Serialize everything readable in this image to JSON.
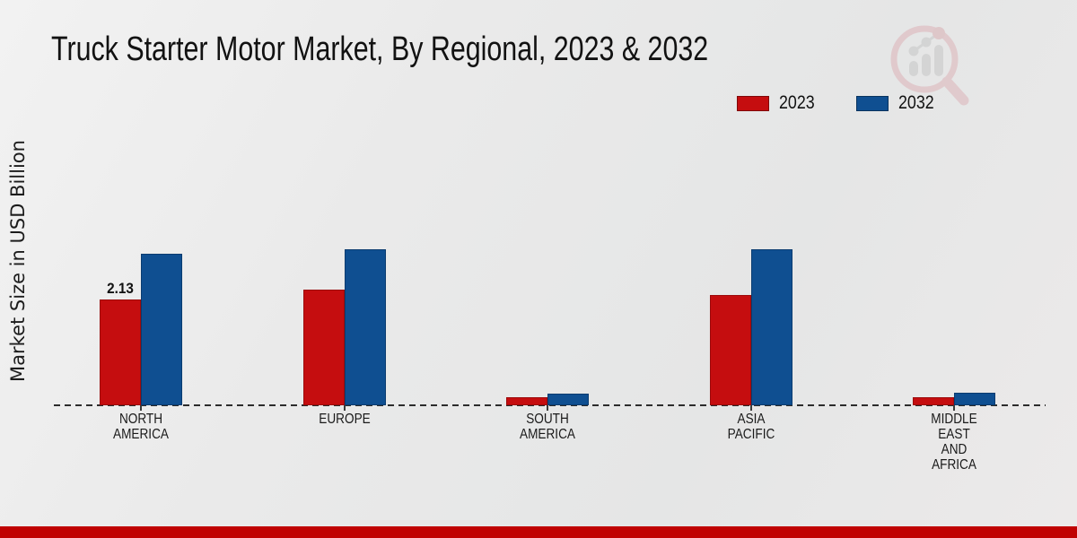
{
  "title": "Truck Starter Motor Market, By Regional, 2023 & 2032",
  "ylabel": "Market Size in USD Billion",
  "colors": {
    "series_2023": "#c50d0f",
    "series_2032": "#0f4f91",
    "footer_strip": "#c00202",
    "background": "#e9eaea",
    "baseline": "#2c2c2c",
    "watermark_pink": "#dcb3b8",
    "watermark_gray": "#c6c6c6"
  },
  "legend": {
    "position": "top-right",
    "items": [
      {
        "label": "2023",
        "color": "#c50d0f"
      },
      {
        "label": "2032",
        "color": "#0f4f91"
      }
    ]
  },
  "chart_data": {
    "type": "bar",
    "title": "Truck Starter Motor Market, By Regional, 2023 & 2032",
    "ylabel": "Market Size in USD Billion",
    "xlabel": "",
    "categories": [
      "NORTH AMERICA",
      "EUROPE",
      "SOUTH AMERICA",
      "ASIA PACIFIC",
      "MIDDLE EAST AND AFRICA"
    ],
    "category_lines": [
      [
        "NORTH",
        "AMERICA"
      ],
      [
        "EUROPE"
      ],
      [
        "SOUTH",
        "AMERICA"
      ],
      [
        "ASIA",
        "PACIFIC"
      ],
      [
        "MIDDLE",
        "EAST",
        "AND",
        "AFRICA"
      ]
    ],
    "series": [
      {
        "name": "2023",
        "color": "#c50d0f",
        "border": "#9c0a0b",
        "values": [
          2.13,
          2.33,
          0.16,
          2.22,
          0.16
        ]
      },
      {
        "name": "2032",
        "color": "#0f4f91",
        "border": "#0a3c70",
        "values": [
          3.05,
          3.14,
          0.24,
          3.14,
          0.25
        ]
      }
    ],
    "data_labels": [
      {
        "series_index": 0,
        "category_index": 0,
        "text": "2.13"
      }
    ],
    "ylim": [
      0,
      3.5
    ],
    "grid": false,
    "axis_style": "dashed-baseline-only",
    "legend_position": "top-right"
  }
}
